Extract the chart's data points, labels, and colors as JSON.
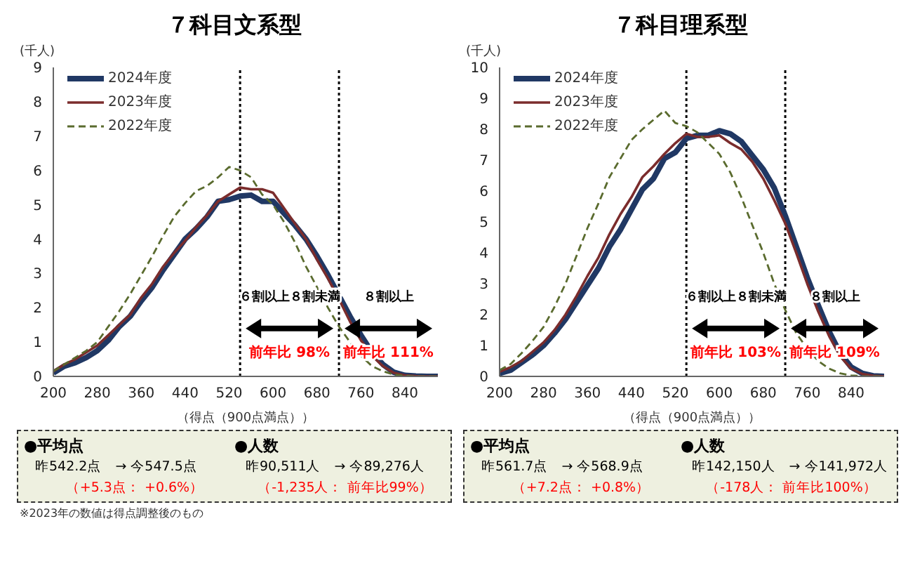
{
  "chart_data": [
    {
      "type": "line",
      "title": "７科目文系型",
      "xlabel": "（得点（900点満点））",
      "ylabel": "(千人)",
      "x": [
        200,
        220,
        240,
        260,
        280,
        300,
        320,
        340,
        360,
        380,
        400,
        420,
        440,
        460,
        480,
        500,
        520,
        540,
        560,
        580,
        600,
        620,
        640,
        660,
        680,
        700,
        720,
        740,
        760,
        780,
        800,
        820,
        840,
        860,
        880,
        900
      ],
      "series": [
        {
          "name": "2024年度",
          "color": "#203864",
          "line_style": "solid",
          "values": [
            0.1,
            0.3,
            0.4,
            0.55,
            0.75,
            1.05,
            1.45,
            1.75,
            2.2,
            2.6,
            3.1,
            3.55,
            4.0,
            4.3,
            4.65,
            5.1,
            5.15,
            5.25,
            5.28,
            5.1,
            5.1,
            4.75,
            4.4,
            4.0,
            3.5,
            2.95,
            2.35,
            1.75,
            1.2,
            0.7,
            0.35,
            0.12,
            0.03,
            0.01,
            0,
            0
          ]
        },
        {
          "name": "2023年度",
          "color": "#7b2c2c",
          "line_style": "solid",
          "values": [
            0.15,
            0.35,
            0.5,
            0.7,
            0.9,
            1.2,
            1.5,
            1.8,
            2.3,
            2.7,
            3.2,
            3.6,
            3.95,
            4.35,
            4.7,
            5.1,
            5.3,
            5.5,
            5.45,
            5.45,
            5.35,
            4.9,
            4.45,
            4.0,
            3.4,
            2.85,
            2.25,
            1.6,
            1.05,
            0.6,
            0.3,
            0.1,
            0.03,
            0.01,
            0,
            0
          ]
        },
        {
          "name": "2022年度",
          "color": "#5a6b2e",
          "line_style": "dashed",
          "values": [
            0.15,
            0.35,
            0.55,
            0.75,
            1.0,
            1.45,
            1.9,
            2.4,
            2.95,
            3.5,
            4.1,
            4.65,
            5.05,
            5.4,
            5.55,
            5.8,
            6.1,
            6.0,
            5.8,
            5.3,
            5.0,
            4.5,
            3.9,
            3.2,
            2.6,
            2.0,
            1.45,
            1.0,
            0.6,
            0.3,
            0.15,
            0.05,
            0.02,
            0,
            0,
            0
          ]
        }
      ],
      "xlim": [
        200,
        900
      ],
      "xticks": [
        200,
        280,
        360,
        440,
        520,
        600,
        680,
        760,
        840
      ],
      "ylim": [
        0,
        9
      ],
      "yticks": [
        0,
        1,
        2,
        3,
        4,
        5,
        6,
        7,
        8,
        9
      ],
      "grid": false,
      "legend": "top left",
      "marker": "none",
      "ref_lines": [
        {
          "axis": "x",
          "value": 540,
          "line_style": "dotted"
        },
        {
          "axis": "x",
          "value": 720,
          "line_style": "dotted"
        }
      ],
      "annotations": [
        "６割以上８割未満",
        "前年比  98%",
        "８割以上",
        "前年比  111%",
        "●平均点",
        "昨542.2点　→ 今547.5点",
        "（+5.3点：  +0.6%）",
        "●人数",
        "昨90,511人　→ 今89,276人",
        "（-1,235人：  前年比99%）",
        "※2023年の数値は得点調整後のもの"
      ]
    },
    {
      "type": "line",
      "title": "７科目理系型",
      "xlabel": "（得点（900点満点））",
      "ylabel": "(千人)",
      "x": [
        200,
        220,
        240,
        260,
        280,
        300,
        320,
        340,
        360,
        380,
        400,
        420,
        440,
        460,
        480,
        500,
        520,
        540,
        560,
        580,
        600,
        620,
        640,
        660,
        680,
        700,
        720,
        740,
        760,
        780,
        800,
        820,
        840,
        860,
        880,
        900
      ],
      "series": [
        {
          "name": "2024年度",
          "color": "#203864",
          "line_style": "solid",
          "values": [
            0.1,
            0.2,
            0.45,
            0.7,
            1.0,
            1.4,
            1.85,
            2.4,
            2.95,
            3.5,
            4.2,
            4.75,
            5.4,
            6.05,
            6.4,
            7.05,
            7.25,
            7.7,
            7.8,
            7.8,
            7.95,
            7.85,
            7.6,
            7.15,
            6.7,
            6.1,
            5.2,
            4.2,
            3.2,
            2.3,
            1.45,
            0.75,
            0.3,
            0.1,
            0.02,
            0
          ]
        },
        {
          "name": "2023年度",
          "color": "#7b2c2c",
          "line_style": "solid",
          "values": [
            0.15,
            0.3,
            0.5,
            0.8,
            1.1,
            1.5,
            2.0,
            2.6,
            3.25,
            3.85,
            4.6,
            5.25,
            5.8,
            6.45,
            6.8,
            7.2,
            7.55,
            7.85,
            7.75,
            7.75,
            7.8,
            7.55,
            7.35,
            6.95,
            6.4,
            5.7,
            4.95,
            4.0,
            3.0,
            2.1,
            1.3,
            0.65,
            0.25,
            0.08,
            0.02,
            0
          ]
        },
        {
          "name": "2022年度",
          "color": "#5a6b2e",
          "line_style": "dashed",
          "values": [
            0.2,
            0.4,
            0.75,
            1.15,
            1.6,
            2.25,
            3.0,
            3.9,
            4.8,
            5.6,
            6.45,
            7.05,
            7.65,
            8.0,
            8.3,
            8.6,
            8.2,
            8.1,
            7.9,
            7.55,
            7.2,
            6.6,
            5.8,
            4.9,
            4.0,
            3.0,
            2.15,
            1.4,
            0.9,
            0.5,
            0.25,
            0.1,
            0.03,
            0.01,
            0,
            0
          ]
        }
      ],
      "xlim": [
        200,
        900
      ],
      "xticks": [
        200,
        280,
        360,
        440,
        520,
        600,
        680,
        760,
        840
      ],
      "ylim": [
        0,
        10
      ],
      "yticks": [
        0,
        1,
        2,
        3,
        4,
        5,
        6,
        7,
        8,
        9,
        10
      ],
      "grid": false,
      "legend": "top left",
      "marker": "none",
      "ref_lines": [
        {
          "axis": "x",
          "value": 540,
          "line_style": "dotted"
        },
        {
          "axis": "x",
          "value": 720,
          "line_style": "dotted"
        }
      ],
      "annotations": [
        "６割以上８割未満",
        "前年比  103%",
        "８割以上",
        "前年比  109%",
        "●平均点",
        "昨561.7点　→ 今568.9点",
        "（+7.2点：  +0.8%）",
        "●人数",
        "昨142,150人　→ 今141,972人",
        "（-178人：  前年比100%）"
      ]
    }
  ]
}
